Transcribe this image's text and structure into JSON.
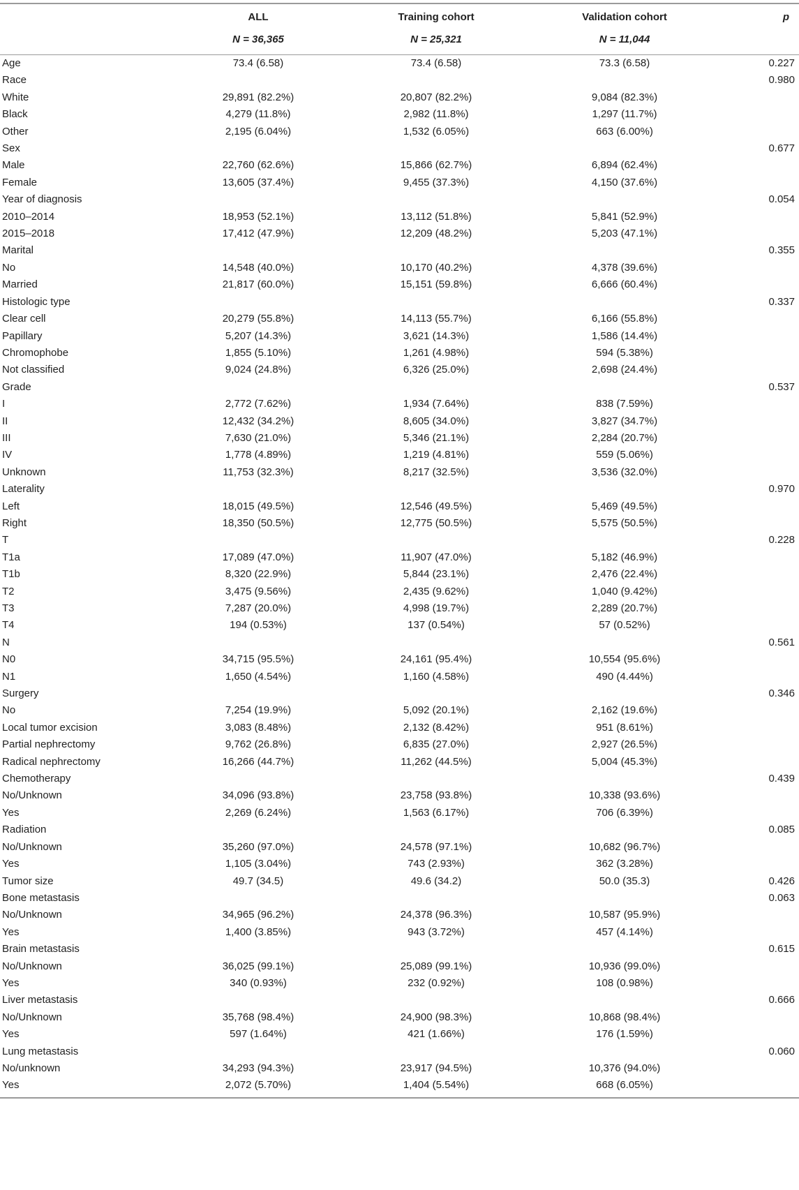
{
  "header": {
    "columns": [
      {
        "title": "",
        "n": ""
      },
      {
        "title": "ALL",
        "n": "N = 36,365"
      },
      {
        "title": "Training cohort",
        "n": "N = 25,321"
      },
      {
        "title": "Validation cohort",
        "n": "N = 11,044"
      },
      {
        "title": "p",
        "n": ""
      }
    ]
  },
  "rows": [
    {
      "label": "Age",
      "all": "73.4 (6.58)",
      "training": "73.4 (6.58)",
      "validation": "73.3 (6.58)",
      "p": "0.227"
    },
    {
      "label": "Race",
      "all": "",
      "training": "",
      "validation": "",
      "p": "0.980"
    },
    {
      "label": "White",
      "all": "29,891 (82.2%)",
      "training": "20,807 (82.2%)",
      "validation": "9,084 (82.3%)",
      "p": ""
    },
    {
      "label": "Black",
      "all": "4,279 (11.8%)",
      "training": "2,982 (11.8%)",
      "validation": "1,297 (11.7%)",
      "p": ""
    },
    {
      "label": "Other",
      "all": "2,195 (6.04%)",
      "training": "1,532 (6.05%)",
      "validation": "663 (6.00%)",
      "p": ""
    },
    {
      "label": "Sex",
      "all": "",
      "training": "",
      "validation": "",
      "p": "0.677"
    },
    {
      "label": "Male",
      "all": "22,760 (62.6%)",
      "training": "15,866 (62.7%)",
      "validation": "6,894 (62.4%)",
      "p": ""
    },
    {
      "label": "Female",
      "all": "13,605 (37.4%)",
      "training": "9,455 (37.3%)",
      "validation": "4,150 (37.6%)",
      "p": ""
    },
    {
      "label": "Year of diagnosis",
      "all": "",
      "training": "",
      "validation": "",
      "p": "0.054"
    },
    {
      "label": "2010–2014",
      "all": "18,953 (52.1%)",
      "training": "13,112 (51.8%)",
      "validation": "5,841 (52.9%)",
      "p": ""
    },
    {
      "label": "2015–2018",
      "all": "17,412 (47.9%)",
      "training": "12,209 (48.2%)",
      "validation": "5,203 (47.1%)",
      "p": ""
    },
    {
      "label": "Marital",
      "all": "",
      "training": "",
      "validation": "",
      "p": "0.355"
    },
    {
      "label": "No",
      "all": "14,548 (40.0%)",
      "training": "10,170 (40.2%)",
      "validation": "4,378 (39.6%)",
      "p": ""
    },
    {
      "label": "Married",
      "all": "21,817 (60.0%)",
      "training": "15,151 (59.8%)",
      "validation": "6,666 (60.4%)",
      "p": ""
    },
    {
      "label": "Histologic type",
      "all": "",
      "training": "",
      "validation": "",
      "p": "0.337"
    },
    {
      "label": "Clear cell",
      "all": "20,279 (55.8%)",
      "training": "14,113 (55.7%)",
      "validation": "6,166 (55.8%)",
      "p": ""
    },
    {
      "label": "Papillary",
      "all": "5,207 (14.3%)",
      "training": "3,621 (14.3%)",
      "validation": "1,586 (14.4%)",
      "p": ""
    },
    {
      "label": "Chromophobe",
      "all": "1,855 (5.10%)",
      "training": "1,261 (4.98%)",
      "validation": "594 (5.38%)",
      "p": ""
    },
    {
      "label": "Not classified",
      "all": "9,024 (24.8%)",
      "training": "6,326 (25.0%)",
      "validation": "2,698 (24.4%)",
      "p": ""
    },
    {
      "label": "Grade",
      "all": "",
      "training": "",
      "validation": "",
      "p": "0.537"
    },
    {
      "label": "I",
      "all": "2,772 (7.62%)",
      "training": "1,934 (7.64%)",
      "validation": "838 (7.59%)",
      "p": ""
    },
    {
      "label": "II",
      "all": "12,432 (34.2%)",
      "training": "8,605 (34.0%)",
      "validation": "3,827 (34.7%)",
      "p": ""
    },
    {
      "label": "III",
      "all": "7,630 (21.0%)",
      "training": "5,346 (21.1%)",
      "validation": "2,284 (20.7%)",
      "p": ""
    },
    {
      "label": "IV",
      "all": "1,778 (4.89%)",
      "training": "1,219 (4.81%)",
      "validation": "559 (5.06%)",
      "p": ""
    },
    {
      "label": "Unknown",
      "all": "11,753 (32.3%)",
      "training": "8,217 (32.5%)",
      "validation": "3,536 (32.0%)",
      "p": ""
    },
    {
      "label": "Laterality",
      "all": "",
      "training": "",
      "validation": "",
      "p": "0.970"
    },
    {
      "label": "Left",
      "all": "18,015 (49.5%)",
      "training": "12,546 (49.5%)",
      "validation": "5,469 (49.5%)",
      "p": ""
    },
    {
      "label": "Right",
      "all": "18,350 (50.5%)",
      "training": "12,775 (50.5%)",
      "validation": "5,575 (50.5%)",
      "p": ""
    },
    {
      "label": "T",
      "all": "",
      "training": "",
      "validation": "",
      "p": "0.228"
    },
    {
      "label": "T1a",
      "all": "17,089 (47.0%)",
      "training": "11,907 (47.0%)",
      "validation": "5,182 (46.9%)",
      "p": ""
    },
    {
      "label": "T1b",
      "all": "8,320 (22.9%)",
      "training": "5,844 (23.1%)",
      "validation": "2,476 (22.4%)",
      "p": ""
    },
    {
      "label": "T2",
      "all": "3,475 (9.56%)",
      "training": "2,435 (9.62%)",
      "validation": "1,040 (9.42%)",
      "p": ""
    },
    {
      "label": "T3",
      "all": "7,287 (20.0%)",
      "training": "4,998 (19.7%)",
      "validation": "2,289 (20.7%)",
      "p": ""
    },
    {
      "label": "T4",
      "all": "194 (0.53%)",
      "training": "137 (0.54%)",
      "validation": "57 (0.52%)",
      "p": ""
    },
    {
      "label": "N",
      "all": "",
      "training": "",
      "validation": "",
      "p": "0.561"
    },
    {
      "label": "N0",
      "all": "34,715 (95.5%)",
      "training": "24,161 (95.4%)",
      "validation": "10,554 (95.6%)",
      "p": ""
    },
    {
      "label": "N1",
      "all": "1,650 (4.54%)",
      "training": "1,160 (4.58%)",
      "validation": "490 (4.44%)",
      "p": ""
    },
    {
      "label": "Surgery",
      "all": "",
      "training": "",
      "validation": "",
      "p": "0.346"
    },
    {
      "label": "No",
      "all": "7,254 (19.9%)",
      "training": "5,092 (20.1%)",
      "validation": "2,162 (19.6%)",
      "p": ""
    },
    {
      "label": "Local tumor excision",
      "all": "3,083 (8.48%)",
      "training": "2,132 (8.42%)",
      "validation": "951 (8.61%)",
      "p": ""
    },
    {
      "label": "Partial nephrectomy",
      "all": "9,762 (26.8%)",
      "training": "6,835 (27.0%)",
      "validation": "2,927 (26.5%)",
      "p": ""
    },
    {
      "label": "Radical nephrectomy",
      "all": "16,266 (44.7%)",
      "training": "11,262 (44.5%)",
      "validation": "5,004 (45.3%)",
      "p": ""
    },
    {
      "label": "Chemotherapy",
      "all": "",
      "training": "",
      "validation": "",
      "p": "0.439"
    },
    {
      "label": "No/Unknown",
      "all": "34,096 (93.8%)",
      "training": "23,758 (93.8%)",
      "validation": "10,338 (93.6%)",
      "p": ""
    },
    {
      "label": "Yes",
      "all": "2,269 (6.24%)",
      "training": "1,563 (6.17%)",
      "validation": "706 (6.39%)",
      "p": ""
    },
    {
      "label": "Radiation",
      "all": "",
      "training": "",
      "validation": "",
      "p": "0.085"
    },
    {
      "label": "No/Unknown",
      "all": "35,260 (97.0%)",
      "training": "24,578 (97.1%)",
      "validation": "10,682 (96.7%)",
      "p": ""
    },
    {
      "label": "Yes",
      "all": "1,105 (3.04%)",
      "training": "743 (2.93%)",
      "validation": "362 (3.28%)",
      "p": ""
    },
    {
      "label": "Tumor size",
      "all": "49.7 (34.5)",
      "training": "49.6 (34.2)",
      "validation": "50.0 (35.3)",
      "p": "0.426"
    },
    {
      "label": "Bone metastasis",
      "all": "",
      "training": "",
      "validation": "",
      "p": "0.063"
    },
    {
      "label": "No/Unknown",
      "all": "34,965 (96.2%)",
      "training": "24,378 (96.3%)",
      "validation": "10,587 (95.9%)",
      "p": ""
    },
    {
      "label": "Yes",
      "all": "1,400 (3.85%)",
      "training": "943 (3.72%)",
      "validation": "457 (4.14%)",
      "p": ""
    },
    {
      "label": "Brain metastasis",
      "all": "",
      "training": "",
      "validation": "",
      "p": "0.615"
    },
    {
      "label": "No/Unknown",
      "all": "36,025 (99.1%)",
      "training": "25,089 (99.1%)",
      "validation": "10,936 (99.0%)",
      "p": ""
    },
    {
      "label": "Yes",
      "all": "340 (0.93%)",
      "training": "232 (0.92%)",
      "validation": "108 (0.98%)",
      "p": ""
    },
    {
      "label": "Liver metastasis",
      "all": "",
      "training": "",
      "validation": "",
      "p": "0.666"
    },
    {
      "label": "No/Unknown",
      "all": "35,768 (98.4%)",
      "training": "24,900 (98.3%)",
      "validation": "10,868 (98.4%)",
      "p": ""
    },
    {
      "label": "Yes",
      "all": "597 (1.64%)",
      "training": "421 (1.66%)",
      "validation": "176 (1.59%)",
      "p": ""
    },
    {
      "label": "Lung metastasis",
      "all": "",
      "training": "",
      "validation": "",
      "p": "0.060"
    },
    {
      "label": "No/unknown",
      "all": "34,293 (94.3%)",
      "training": "23,917 (94.5%)",
      "validation": "10,376 (94.0%)",
      "p": ""
    },
    {
      "label": "Yes",
      "all": "2,072 (5.70%)",
      "training": "1,404 (5.54%)",
      "validation": "668 (6.05%)",
      "p": ""
    }
  ]
}
